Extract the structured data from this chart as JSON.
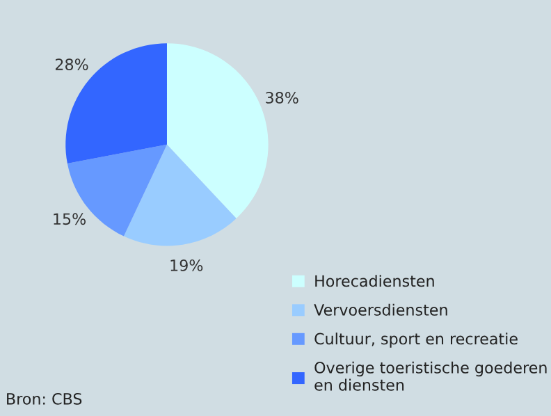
{
  "chart_data": {
    "type": "pie",
    "categories": [
      "Horecadiensten",
      "Vervoersdiensten",
      "Cultuur, sport en recreatie",
      "Overige toeristische goederen\nen diensten"
    ],
    "values": [
      38,
      19,
      15,
      28
    ],
    "colors": [
      "#ccffff",
      "#99ccff",
      "#6699ff",
      "#3366ff"
    ],
    "value_labels": [
      "38%",
      "19%",
      "15%",
      "28%"
    ],
    "legend": "bottom right",
    "annotations": [
      "Bron: CBS"
    ]
  }
}
